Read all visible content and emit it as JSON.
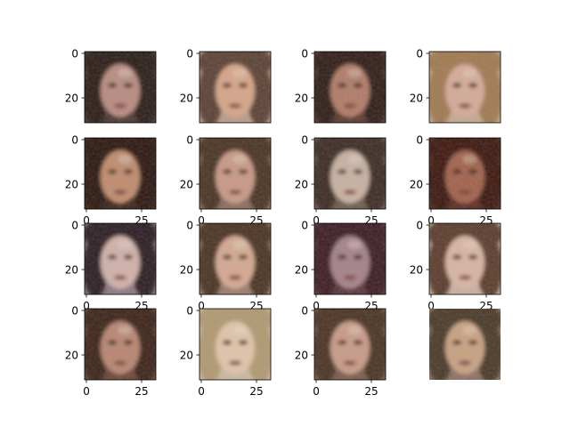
{
  "figure": {
    "axes": [
      {
        "yticks": [
          "0",
          "20"
        ],
        "xticks": [],
        "tone": "#4a3630",
        "skin": "#b88a7e",
        "hair": "#2a1a16"
      },
      {
        "yticks": [
          "0",
          "20"
        ],
        "xticks": [],
        "tone": "#b89a86",
        "skin": "#d6a488",
        "hair": "#5a4030"
      },
      {
        "yticks": [
          "0",
          "20"
        ],
        "xticks": [],
        "tone": "#5a3a2c",
        "skin": "#b07a66",
        "hair": "#2e1c14"
      },
      {
        "yticks": [
          "0",
          "20"
        ],
        "xticks": [],
        "tone": "#c4a890",
        "skin": "#d4aa96",
        "hair": "#a07850"
      },
      {
        "yticks": [
          "0",
          "20"
        ],
        "xticks": [
          "0",
          "25"
        ],
        "tone": "#3a2418",
        "skin": "#c08a6c",
        "hair": "#2a1810"
      },
      {
        "yticks": [
          "0",
          "20"
        ],
        "xticks": [
          "0",
          "25"
        ],
        "tone": "#8a6a5a",
        "skin": "#c89884",
        "hair": "#4a3024"
      },
      {
        "yticks": [
          "0",
          "20"
        ],
        "xticks": [
          "0",
          "25"
        ],
        "tone": "#6a5a4c",
        "skin": "#c8b0a0",
        "hair": "#3a2c20"
      },
      {
        "yticks": [
          "0",
          "20"
        ],
        "xticks": [
          "0",
          "25"
        ],
        "tone": "#5a2c20",
        "skin": "#a06048",
        "hair": "#3a1810"
      },
      {
        "yticks": [
          "0",
          "20"
        ],
        "xticks": [
          "0",
          "25"
        ],
        "tone": "#8a7880",
        "skin": "#d0b0a8",
        "hair": "#2a1e24"
      },
      {
        "yticks": [
          "0",
          "20"
        ],
        "xticks": [
          "0",
          "25"
        ],
        "tone": "#9a7a68",
        "skin": "#d4a890",
        "hair": "#4a3022"
      },
      {
        "yticks": [
          "0",
          "20"
        ],
        "xticks": [
          "0",
          "25"
        ],
        "tone": "#5a3438",
        "skin": "#a48088",
        "hair": "#3a1e22"
      },
      {
        "yticks": [
          "0",
          "20"
        ],
        "xticks": [
          "0",
          "25"
        ],
        "tone": "#c8b0a0",
        "skin": "#d8b4a0",
        "hair": "#5a3a2a"
      },
      {
        "yticks": [
          "0",
          "20"
        ],
        "xticks": [
          "0",
          "25"
        ],
        "tone": "#6a4434",
        "skin": "#b88470",
        "hair": "#3a2418"
      },
      {
        "yticks": [
          "0",
          "20"
        ],
        "xticks": [
          "0",
          "25"
        ],
        "tone": "#c8b8a0",
        "skin": "#e0c4a8",
        "hair": "#b09870"
      },
      {
        "yticks": [
          "0",
          "20"
        ],
        "xticks": [
          "0",
          "25"
        ],
        "tone": "#7a5a48",
        "skin": "#c89a86",
        "hair": "#4a3020"
      },
      {
        "yticks": [],
        "xticks": [],
        "tone": "#8a7060",
        "skin": "#c8a080",
        "hair": "#4a3828",
        "noframe": true
      }
    ],
    "colors": {
      "axis": "#000000",
      "background": "#ffffff"
    }
  }
}
